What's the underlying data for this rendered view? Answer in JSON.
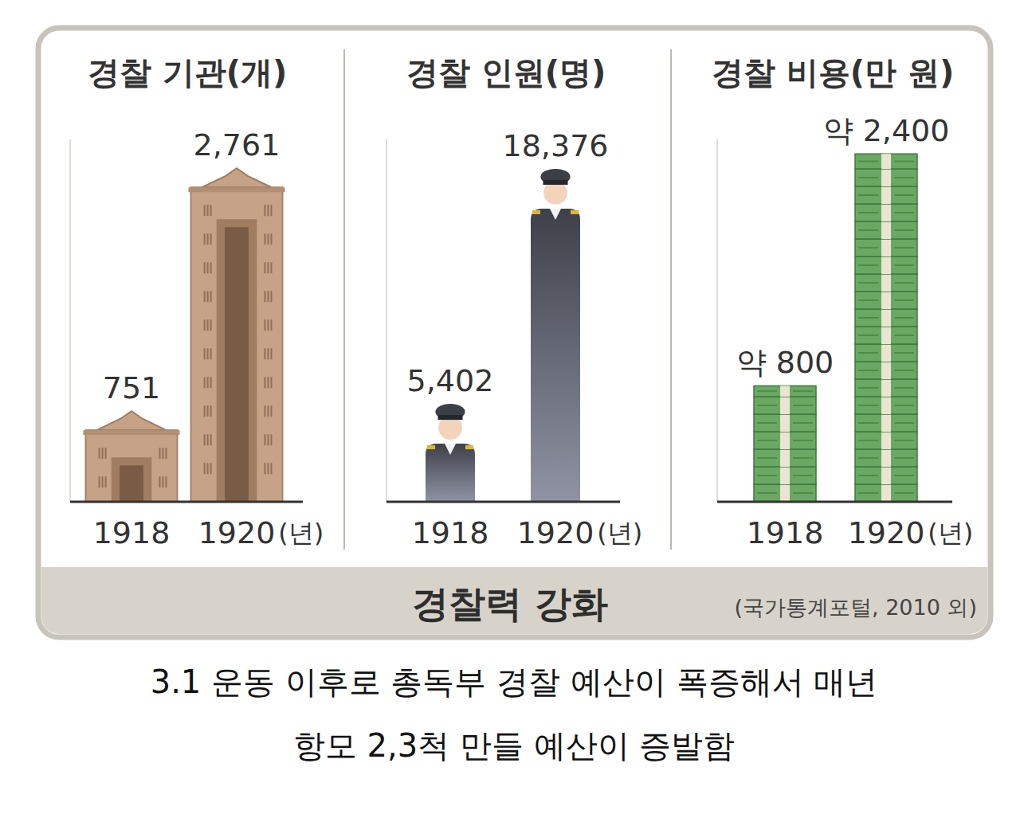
{
  "chart_data": [
    {
      "type": "bar",
      "title": "경찰 기관(개)",
      "categories": [
        "1918",
        "1920"
      ],
      "xlabel": "(년)",
      "values": [
        751,
        2761
      ],
      "value_labels": [
        "751",
        "2,761"
      ],
      "data_labels": true,
      "tick_labels": "x",
      "ylim": [
        0,
        3000
      ],
      "color": "#c6a387",
      "marker": "building"
    },
    {
      "type": "bar",
      "title": "경찰 인원(명)",
      "categories": [
        "1918",
        "1920"
      ],
      "xlabel": "(년)",
      "values": [
        5402,
        18376
      ],
      "value_labels": [
        "5,402",
        "18,376"
      ],
      "data_labels": true,
      "tick_labels": "x",
      "ylim": [
        0,
        20000
      ],
      "color": "#4b4e57",
      "marker": "person"
    },
    {
      "type": "bar",
      "title": "경찰 비용(만 원)",
      "categories": [
        "1918",
        "1920"
      ],
      "xlabel": "(년)",
      "values": [
        800,
        2400
      ],
      "value_labels": [
        "약 800",
        "약 2,400"
      ],
      "data_labels": true,
      "tick_labels": "x",
      "ylim": [
        0,
        2500
      ],
      "color": "#5e9c58",
      "marker": "money"
    }
  ],
  "footer": {
    "title": "경찰력 강화",
    "source": "(국가통계포털, 2010 외)"
  },
  "caption": [
    "3.1 운동 이후로 총독부 경찰 예산이 폭증해서 매년",
    "항모 2,3척 만들 예산이 증발함"
  ]
}
